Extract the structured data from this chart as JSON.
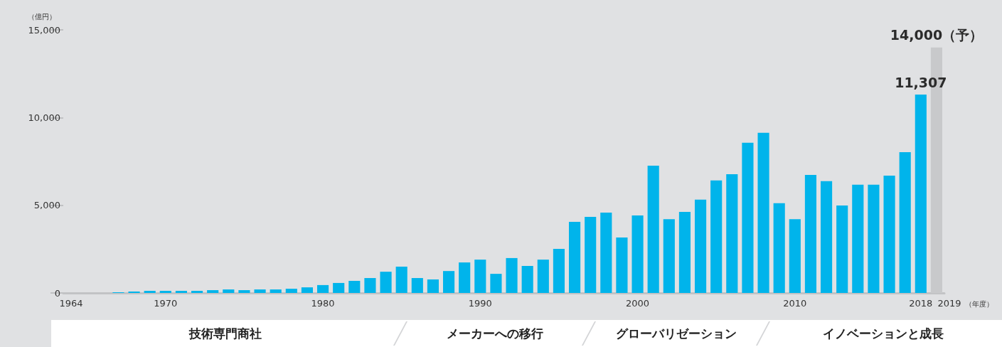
{
  "chart_data": {
    "type": "bar",
    "ylabel": "（億円）",
    "xlabel": "（年度）",
    "categories": [
      "1964",
      null,
      null,
      null,
      null,
      null,
      "1970",
      null,
      null,
      null,
      null,
      null,
      null,
      null,
      null,
      null,
      "1980",
      null,
      null,
      null,
      null,
      null,
      null,
      null,
      null,
      null,
      "1990",
      null,
      null,
      null,
      null,
      null,
      null,
      null,
      null,
      null,
      "2000",
      null,
      null,
      null,
      null,
      null,
      null,
      null,
      null,
      null,
      "2010",
      null,
      null,
      null,
      null,
      null,
      null,
      null,
      "2018",
      "2019"
    ],
    "values": [
      null,
      null,
      null,
      40,
      80,
      120,
      120,
      120,
      120,
      160,
      200,
      160,
      200,
      200,
      240,
      320,
      450,
      570,
      690,
      850,
      1210,
      1500,
      850,
      770,
      1250,
      1740,
      1900,
      1090,
      1990,
      1540,
      1900,
      2510,
      4050,
      4340,
      4580,
      3160,
      4420,
      7260,
      4210,
      4620,
      5320,
      6420,
      6770,
      8560,
      9130,
      5120,
      4210,
      6730,
      6380,
      4990,
      6170,
      6170,
      6690,
      8030,
      11307,
      14000
    ],
    "colors": [
      "#00b4eb",
      "#00b4eb",
      "#00b4eb",
      "#00b4eb",
      "#00b4eb",
      "#00b4eb",
      "#00b4eb",
      "#00b4eb",
      "#00b4eb",
      "#00b4eb",
      "#00b4eb",
      "#00b4eb",
      "#00b4eb",
      "#00b4eb",
      "#00b4eb",
      "#00b4eb",
      "#00b4eb",
      "#00b4eb",
      "#00b4eb",
      "#00b4eb",
      "#00b4eb",
      "#00b4eb",
      "#00b4eb",
      "#00b4eb",
      "#00b4eb",
      "#00b4eb",
      "#00b4eb",
      "#00b4eb",
      "#00b4eb",
      "#00b4eb",
      "#00b4eb",
      "#00b4eb",
      "#00b4eb",
      "#00b4eb",
      "#00b4eb",
      "#00b4eb",
      "#00b4eb",
      "#00b4eb",
      "#00b4eb",
      "#00b4eb",
      "#00b4eb",
      "#00b4eb",
      "#00b4eb",
      "#00b4eb",
      "#00b4eb",
      "#00b4eb",
      "#00b4eb",
      "#00b4eb",
      "#00b4eb",
      "#00b4eb",
      "#00b4eb",
      "#00b4eb",
      "#00b4eb",
      "#00b4eb",
      "#00b4eb",
      "#c8c9cb"
    ],
    "value_labels": [
      null,
      null,
      null,
      null,
      null,
      null,
      null,
      null,
      null,
      null,
      null,
      null,
      null,
      null,
      null,
      null,
      null,
      null,
      null,
      null,
      null,
      null,
      null,
      null,
      null,
      null,
      null,
      null,
      null,
      null,
      null,
      null,
      null,
      null,
      null,
      null,
      null,
      null,
      null,
      null,
      null,
      null,
      null,
      null,
      null,
      null,
      null,
      null,
      null,
      null,
      null,
      null,
      null,
      null,
      "11,307",
      "14,000（予）"
    ],
    "ylim": [
      0,
      15000
    ],
    "yticks": [
      0,
      {
        "value": 5000,
        "label": "5,000"
      },
      {
        "value": 10000,
        "label": "10,000"
      },
      {
        "value": 15000,
        "label": "15,000"
      }
    ],
    "annotations": [
      "技術専門商社",
      "メーカーへの移行",
      "グローバリゼーション",
      "イノベーションと成長"
    ]
  }
}
